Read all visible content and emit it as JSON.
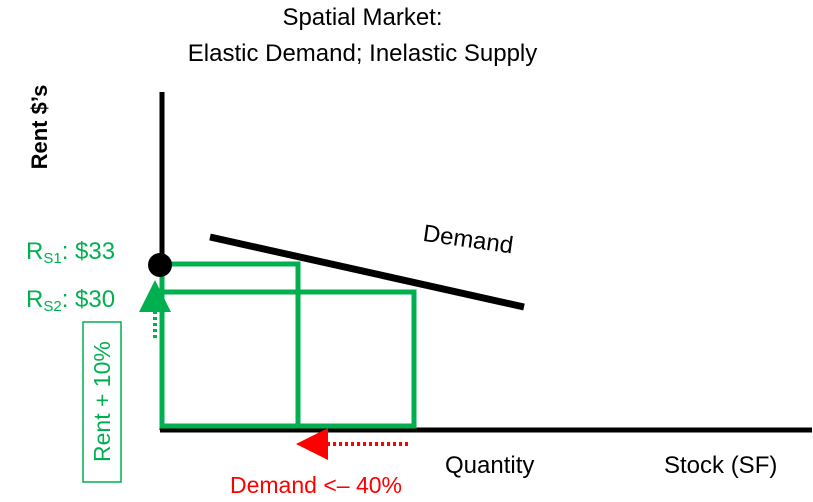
{
  "title": {
    "line1": "Spatial Market:",
    "line2": "Elastic Demand; Inelastic Supply"
  },
  "axes": {
    "y_label": "Rent $’s",
    "x_label_quantity": "Quantity",
    "x_label_stock": "Stock (SF)"
  },
  "curves": {
    "demand_label": "Demand"
  },
  "rents": {
    "r1": {
      "prefix": "R",
      "sub": "S1",
      "value": ": $33"
    },
    "r2": {
      "prefix": "R",
      "sub": "S2",
      "value": ": $30"
    }
  },
  "annotations": {
    "rent_change": "Rent + 10%",
    "demand_change": "Demand <– 40%"
  },
  "colors": {
    "axis": "#000000",
    "rectangles": "#00b050",
    "rent_annotation": "#00b050",
    "demand_annotation": "#ff0000"
  }
}
